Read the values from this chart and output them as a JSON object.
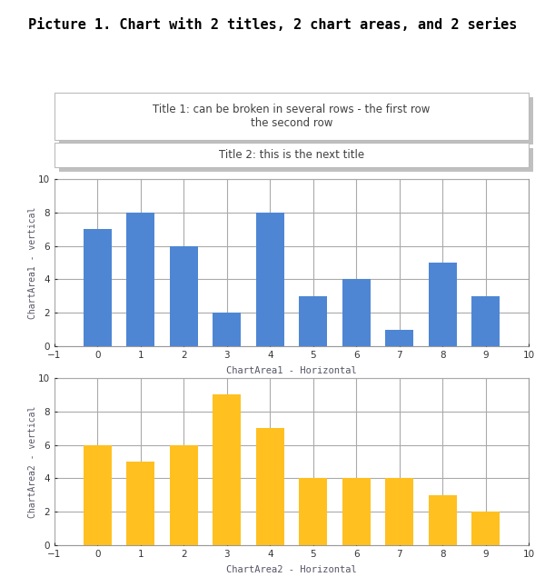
{
  "main_title": "Picture 1. Chart with 2 titles, 2 chart areas, and 2 series",
  "title1_line1": "Title 1: can be broken in several rows - the first row",
  "title1_line2": "the second row",
  "title2": "Title 2: this is the next title",
  "chart1": {
    "x": [
      0,
      1,
      2,
      3,
      4,
      5,
      6,
      7,
      8,
      9
    ],
    "y": [
      7,
      8,
      6,
      2,
      8,
      3,
      4,
      1,
      5,
      3
    ],
    "color": "#4E86D4",
    "xlabel": "ChartArea1 - Horizontal",
    "ylabel": "ChartArea1 - vertical",
    "xlim": [
      -1,
      10
    ],
    "ylim": [
      0,
      10
    ],
    "yticks": [
      0,
      2,
      4,
      6,
      8,
      10
    ],
    "xticks": [
      -1,
      0,
      1,
      2,
      3,
      4,
      5,
      6,
      7,
      8,
      9,
      10
    ]
  },
  "chart2": {
    "x": [
      0,
      1,
      2,
      3,
      4,
      5,
      6,
      7,
      8,
      9
    ],
    "y": [
      6,
      5,
      6,
      9,
      7,
      4,
      4,
      4,
      3,
      2
    ],
    "color": "#FFC020",
    "xlabel": "ChartArea2 - Horizontal",
    "ylabel": "ChartArea2 - vertical",
    "xlim": [
      -1,
      10
    ],
    "ylim": [
      0,
      10
    ],
    "yticks": [
      0,
      2,
      4,
      6,
      8,
      10
    ],
    "xticks": [
      -1,
      0,
      1,
      2,
      3,
      4,
      5,
      6,
      7,
      8,
      9,
      10
    ]
  },
  "bg_color": "#ffffff",
  "title_border_color": "#bbbbbb",
  "title_text_color": "#404040",
  "main_title_color": "#000000",
  "chart_bg_color": "#ffffff",
  "grid_color": "#aaaaaa",
  "bar_width": 0.65,
  "axis_label_color": "#555566",
  "tick_label_color": "#333333"
}
